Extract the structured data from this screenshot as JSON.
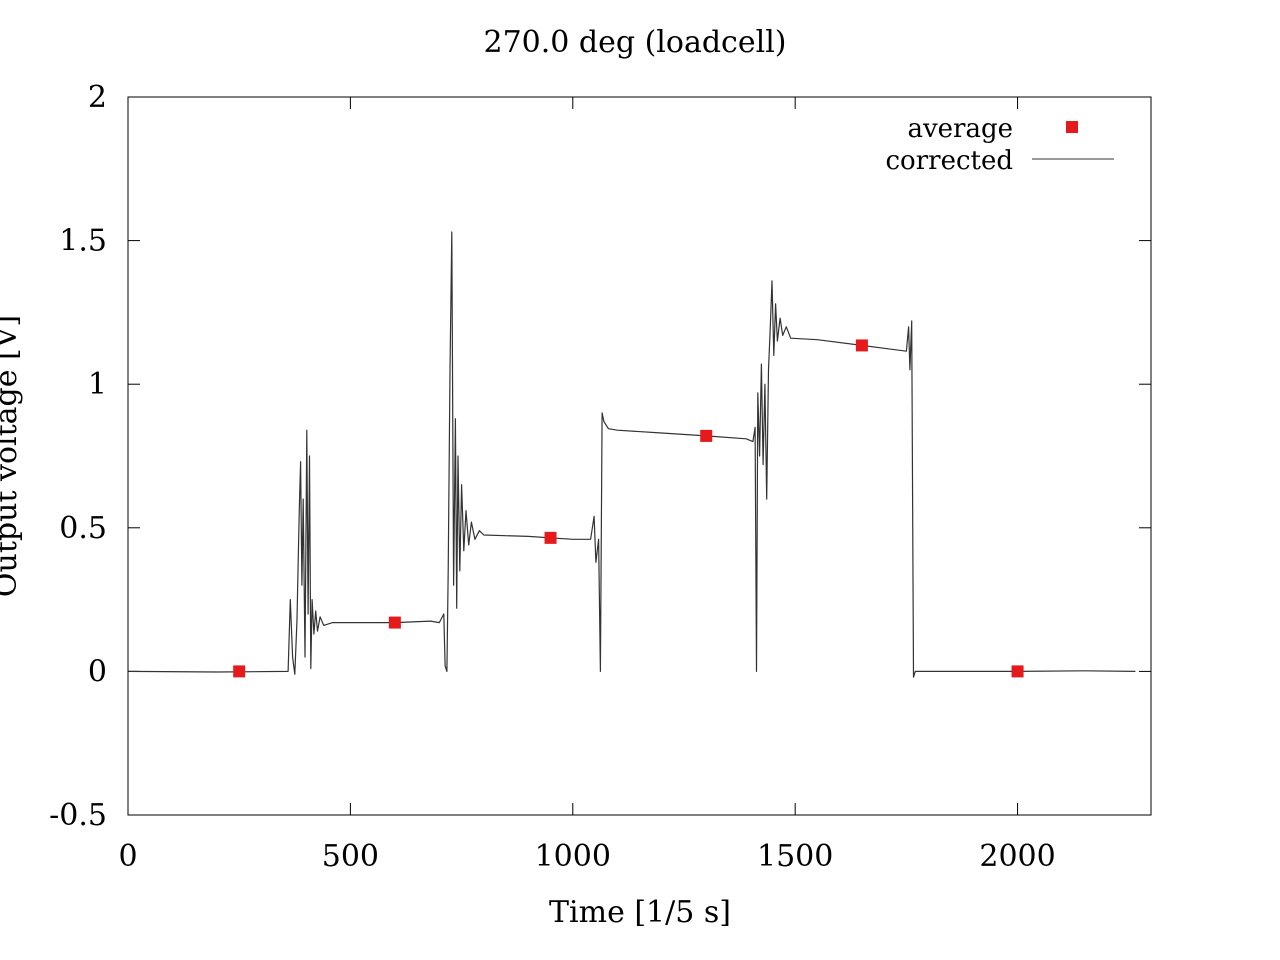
{
  "chart_data": {
    "type": "line",
    "title": "270.0 deg (loadcell)",
    "xlabel": "Time [1/5 s]",
    "ylabel": "Output voltage [V]",
    "xlim": [
      0,
      2300
    ],
    "ylim": [
      -0.5,
      2
    ],
    "x_ticks": [
      {
        "value": 0,
        "label": "0"
      },
      {
        "value": 500,
        "label": "500"
      },
      {
        "value": 1000,
        "label": "1000"
      },
      {
        "value": 1500,
        "label": "1500"
      },
      {
        "value": 2000,
        "label": "2000"
      }
    ],
    "y_ticks": [
      {
        "value": -0.5,
        "label": "-0.5"
      },
      {
        "value": 0,
        "label": "0"
      },
      {
        "value": 0.5,
        "label": "0.5"
      },
      {
        "value": 1,
        "label": "1"
      },
      {
        "value": 1.5,
        "label": "1.5"
      },
      {
        "value": 2,
        "label": "2"
      }
    ],
    "grid": false,
    "legend_position": "top-right",
    "series": [
      {
        "name": "average",
        "style": "points",
        "marker": "square",
        "color": "#e41a1c",
        "points": [
          [
            250,
            0.0
          ],
          [
            600,
            0.17
          ],
          [
            950,
            0.465
          ],
          [
            1300,
            0.82
          ],
          [
            1650,
            1.135
          ],
          [
            2000,
            0.0
          ]
        ]
      },
      {
        "name": "corrected",
        "style": "line",
        "color": "#333333",
        "points": [
          [
            0,
            0.0
          ],
          [
            200,
            -0.002
          ],
          [
            360,
            0.0
          ],
          [
            365,
            0.25
          ],
          [
            370,
            0.05
          ],
          [
            375,
            -0.01
          ],
          [
            380,
            0.18
          ],
          [
            385,
            0.55
          ],
          [
            388,
            0.73
          ],
          [
            391,
            0.3
          ],
          [
            394,
            0.6
          ],
          [
            398,
            0.05
          ],
          [
            402,
            0.84
          ],
          [
            405,
            0.2
          ],
          [
            408,
            0.75
          ],
          [
            411,
            0.01
          ],
          [
            414,
            0.25
          ],
          [
            418,
            0.13
          ],
          [
            422,
            0.21
          ],
          [
            426,
            0.14
          ],
          [
            432,
            0.19
          ],
          [
            440,
            0.16
          ],
          [
            460,
            0.17
          ],
          [
            520,
            0.17
          ],
          [
            600,
            0.17
          ],
          [
            680,
            0.175
          ],
          [
            700,
            0.17
          ],
          [
            710,
            0.2
          ],
          [
            713,
            0.02
          ],
          [
            717,
            0.0
          ],
          [
            720,
            0.35
          ],
          [
            724,
            1.05
          ],
          [
            728,
            1.53
          ],
          [
            732,
            0.3
          ],
          [
            736,
            0.88
          ],
          [
            739,
            0.22
          ],
          [
            742,
            0.75
          ],
          [
            746,
            0.35
          ],
          [
            750,
            0.65
          ],
          [
            755,
            0.42
          ],
          [
            760,
            0.56
          ],
          [
            766,
            0.44
          ],
          [
            772,
            0.52
          ],
          [
            780,
            0.46
          ],
          [
            790,
            0.49
          ],
          [
            800,
            0.475
          ],
          [
            900,
            0.47
          ],
          [
            1000,
            0.46
          ],
          [
            1040,
            0.46
          ],
          [
            1048,
            0.54
          ],
          [
            1052,
            0.38
          ],
          [
            1058,
            0.46
          ],
          [
            1062,
            0.0
          ],
          [
            1066,
            0.9
          ],
          [
            1070,
            0.87
          ],
          [
            1080,
            0.845
          ],
          [
            1100,
            0.84
          ],
          [
            1200,
            0.83
          ],
          [
            1300,
            0.82
          ],
          [
            1390,
            0.81
          ],
          [
            1405,
            0.8
          ],
          [
            1410,
            0.85
          ],
          [
            1413,
            0.0
          ],
          [
            1416,
            0.97
          ],
          [
            1420,
            0.75
          ],
          [
            1424,
            1.07
          ],
          [
            1428,
            0.72
          ],
          [
            1432,
            1.0
          ],
          [
            1436,
            0.6
          ],
          [
            1440,
            1.05
          ],
          [
            1444,
            1.2
          ],
          [
            1448,
            1.36
          ],
          [
            1452,
            1.1
          ],
          [
            1456,
            1.28
          ],
          [
            1460,
            1.15
          ],
          [
            1466,
            1.23
          ],
          [
            1472,
            1.17
          ],
          [
            1480,
            1.2
          ],
          [
            1490,
            1.16
          ],
          [
            1550,
            1.155
          ],
          [
            1650,
            1.135
          ],
          [
            1750,
            1.115
          ],
          [
            1755,
            1.2
          ],
          [
            1758,
            1.05
          ],
          [
            1762,
            1.22
          ],
          [
            1766,
            -0.02
          ],
          [
            1770,
            0.0
          ],
          [
            2000,
            0.0
          ],
          [
            2150,
            0.002
          ],
          [
            2265,
            0.0
          ]
        ]
      }
    ]
  }
}
